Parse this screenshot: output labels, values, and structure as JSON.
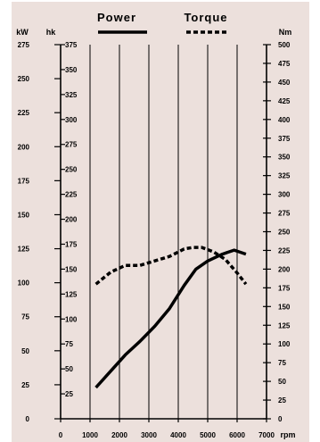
{
  "colors": {
    "background": "#ece0dc",
    "ink": "#000000"
  },
  "chart_data": {
    "type": "line",
    "title": "",
    "legend": {
      "placement": "top-center",
      "entries": [
        {
          "label": "Power",
          "style": "solid"
        },
        {
          "label": "Torque",
          "style": "dashed"
        }
      ]
    },
    "axes": {
      "x": {
        "unit": "rpm",
        "range": [
          0,
          7000
        ],
        "ticks": [
          "0",
          "1000",
          "2000",
          "3000",
          "4000",
          "5000",
          "6000",
          "7000"
        ]
      },
      "y_kw": {
        "unit": "kW",
        "range": [
          0,
          275
        ],
        "ticks": [
          "0",
          "25",
          "50",
          "75",
          "100",
          "125",
          "150",
          "175",
          "200",
          "225",
          "250",
          "275"
        ]
      },
      "y_hk": {
        "unit": "hk",
        "range": [
          0,
          375
        ],
        "ticks": [
          "25",
          "50",
          "75",
          "100",
          "125",
          "150",
          "175",
          "200",
          "225",
          "250",
          "275",
          "300",
          "325",
          "350",
          "375"
        ]
      },
      "y_nm": {
        "unit": "Nm",
        "range": [
          0,
          500
        ],
        "ticks": [
          "0",
          "25",
          "50",
          "75",
          "100",
          "125",
          "150",
          "175",
          "200",
          "225",
          "250",
          "275",
          "300",
          "325",
          "350",
          "375",
          "400",
          "425",
          "450",
          "475",
          "500"
        ]
      }
    },
    "grid": "vertical",
    "series": [
      {
        "name": "Power",
        "axis": "kW",
        "style": "solid",
        "x": [
          1200,
          1700,
          2200,
          2700,
          3200,
          3700,
          4200,
          4600,
          5000,
          5500,
          5900,
          6300
        ],
        "y": [
          23,
          35,
          47,
          57,
          68,
          81,
          98,
          110,
          116,
          121,
          124,
          121
        ]
      },
      {
        "name": "Torque",
        "axis": "Nm",
        "style": "dashed",
        "x": [
          1200,
          1700,
          2200,
          2700,
          3200,
          3700,
          4200,
          4500,
          4800,
          5200,
          5600,
          6000,
          6300
        ],
        "y": [
          180,
          196,
          205,
          205,
          211,
          217,
          227,
          229,
          229,
          223,
          213,
          195,
          180
        ]
      }
    ]
  }
}
